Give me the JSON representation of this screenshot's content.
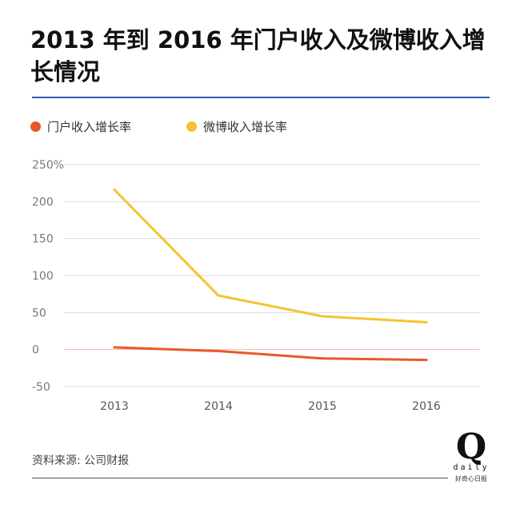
{
  "title": "2013 年到 2016 年门户收入及微博收入增长情况",
  "source": "资料来源: 公司财报",
  "logo": {
    "letter": "Q",
    "word": "daily",
    "tagline": "好奇心日报"
  },
  "colors": {
    "portal": "#e8582a",
    "weibo": "#f2c530",
    "accent_rule": "#2a5ea8",
    "grid": "#dddddd",
    "zero_line": "#f4b9a8"
  },
  "chart_data": {
    "type": "line",
    "x": [
      "2013",
      "2014",
      "2015",
      "2016"
    ],
    "series": [
      {
        "name": "门户收入增长率",
        "color": "#e8582a",
        "values": [
          3,
          -2,
          -12,
          -14
        ]
      },
      {
        "name": "微博收入增长率",
        "color": "#f2c530",
        "values": [
          216,
          73,
          45,
          37
        ]
      }
    ],
    "yticks": [
      "250%",
      "200",
      "150",
      "100",
      "50",
      "0",
      "-50"
    ],
    "ylim": [
      -50,
      250
    ],
    "grid": true,
    "legend_position": "top-left"
  }
}
